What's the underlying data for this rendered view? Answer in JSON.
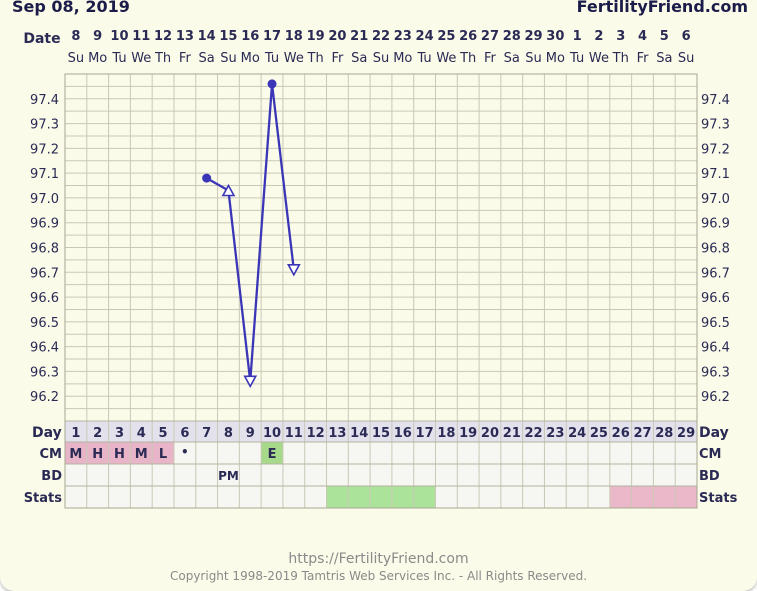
{
  "header": {
    "start_date": "Sep 08, 2019",
    "brand": "FertilityFriend.com"
  },
  "row_labels": {
    "date": "Date",
    "day": "Day",
    "cm": "CM",
    "bd": "BD",
    "stats": "Stats"
  },
  "chart_data": {
    "type": "line",
    "x_labels_date": [
      "8",
      "9",
      "10",
      "11",
      "12",
      "13",
      "14",
      "15",
      "16",
      "17",
      "18",
      "19",
      "20",
      "21",
      "22",
      "23",
      "24",
      "25",
      "26",
      "27",
      "28",
      "29",
      "30",
      "1",
      "2",
      "3",
      "4",
      "5",
      "6"
    ],
    "x_labels_weekday": [
      "Su",
      "Mo",
      "Tu",
      "We",
      "Th",
      "Fr",
      "Sa",
      "Su",
      "Mo",
      "Tu",
      "We",
      "Th",
      "Fr",
      "Sa",
      "Su",
      "Mo",
      "Tu",
      "We",
      "Th",
      "Fr",
      "Sa",
      "Su",
      "Mo",
      "Tu",
      "We",
      "Th",
      "Fr",
      "Sa",
      "Su"
    ],
    "cycle_days": [
      "1",
      "2",
      "3",
      "4",
      "5",
      "6",
      "7",
      "8",
      "9",
      "10",
      "11",
      "12",
      "13",
      "14",
      "15",
      "16",
      "17",
      "18",
      "19",
      "20",
      "21",
      "22",
      "23",
      "24",
      "25",
      "26",
      "27",
      "28",
      "29"
    ],
    "y_ticks": [
      "97.4",
      "97.3",
      "97.2",
      "97.1",
      "97.0",
      "96.9",
      "96.8",
      "96.7",
      "96.6",
      "96.5",
      "96.4",
      "96.3",
      "96.2"
    ],
    "ylim": [
      96.1,
      97.5
    ],
    "series": [
      {
        "points": [
          {
            "day": 7,
            "temp": 97.08,
            "marker": "dot"
          },
          {
            "day": 8,
            "temp": 97.03,
            "marker": "triangle-up"
          },
          {
            "day": 9,
            "temp": 96.26,
            "marker": "triangle-down"
          },
          {
            "day": 10,
            "temp": 97.46,
            "marker": "dot"
          },
          {
            "day": 11,
            "temp": 96.71,
            "marker": "triangle-down"
          }
        ],
        "color": "#3b36b8"
      }
    ],
    "cm": [
      {
        "day": 1,
        "value": "M"
      },
      {
        "day": 2,
        "value": "H"
      },
      {
        "day": 3,
        "value": "H"
      },
      {
        "day": 4,
        "value": "M"
      },
      {
        "day": 5,
        "value": "L"
      },
      {
        "day": 6,
        "value": "•"
      },
      {
        "day": 10,
        "value": "E"
      }
    ],
    "bd": [
      {
        "day": 8,
        "value": "PM"
      }
    ],
    "stats": {
      "green_days": [
        13,
        14,
        15,
        16,
        17
      ],
      "pink_days": [
        26,
        27,
        28,
        29
      ]
    },
    "colors": {
      "grid": "#c9c9b6",
      "plot_bg": "#fafbe8",
      "menstruation": "#e8b5c8",
      "egg_white": "#a6d98a",
      "fertile": "#ace39a",
      "stats_pink": "#eab8c8",
      "label_band": "#e3e1ec"
    }
  },
  "footer": {
    "url": "https://FertilityFriend.com",
    "copyright": "Copyright 1998-2019 Tamtris Web Services Inc. - All Rights Reserved."
  }
}
